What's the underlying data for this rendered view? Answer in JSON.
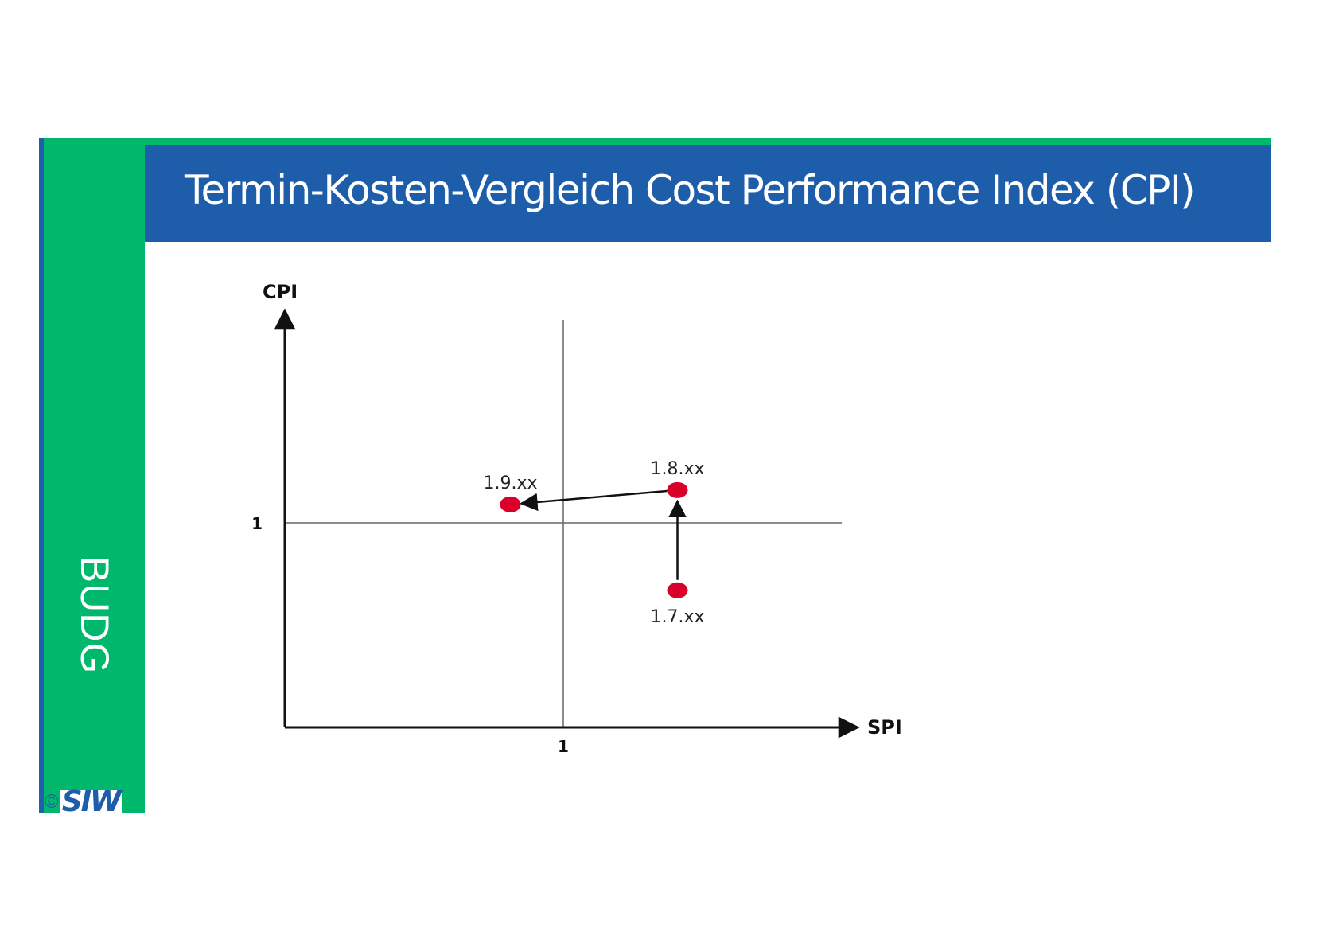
{
  "sidebar": {
    "label": "BUDG"
  },
  "header": {
    "title": "Termin-Kosten-Vergleich Cost Performance Index (CPI)"
  },
  "logo": {
    "copyright": "©",
    "text": "SIW"
  },
  "colors": {
    "accent_green": "#00b86b",
    "header_blue": "#1d5daa",
    "point_red": "#d9002a"
  },
  "chart_data": {
    "type": "scatter",
    "title": "",
    "xlabel": "SPI",
    "ylabel": "CPI",
    "xlim": [
      0,
      2
    ],
    "ylim": [
      0,
      2
    ],
    "x_ticks": [
      {
        "value": 1,
        "label": "1"
      }
    ],
    "y_ticks": [
      {
        "value": 1,
        "label": "1"
      }
    ],
    "reference_lines": {
      "x": 1,
      "y": 1
    },
    "grid": false,
    "points": [
      {
        "label": "1.7.xx",
        "x": 1.41,
        "y": 0.67
      },
      {
        "label": "1.8.xx",
        "x": 1.41,
        "y": 1.16
      },
      {
        "label": "1.9.xx",
        "x": 0.81,
        "y": 1.09
      }
    ],
    "arrows": [
      {
        "from": 0,
        "to": 1
      },
      {
        "from": 1,
        "to": 2
      }
    ]
  }
}
